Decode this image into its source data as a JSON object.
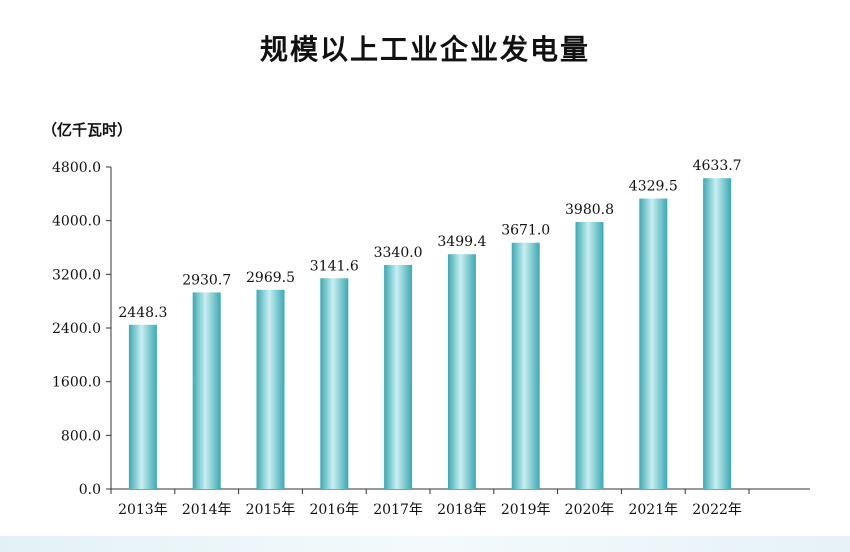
{
  "header": {
    "title": "规模以上工业企业发电量",
    "unit": "（亿千瓦时）"
  },
  "colors": {
    "bar_dark": "#3aa9b4",
    "bar_light": "#c9eef1",
    "axis": "#333333"
  },
  "chart_data": {
    "type": "bar",
    "title": "规模以上工业企业发电量",
    "ylabel": "（亿千瓦时）",
    "xlabel": "",
    "categories": [
      "2013年",
      "2014年",
      "2015年",
      "2016年",
      "2017年",
      "2018年",
      "2019年",
      "2020年",
      "2021年",
      "2022年"
    ],
    "values": [
      2448.3,
      2930.7,
      2969.5,
      3141.6,
      3340.0,
      3499.4,
      3671.0,
      3980.8,
      4329.5,
      4633.7
    ],
    "value_labels": [
      "2448.3",
      "2930.7",
      "2969.5",
      "3141.6",
      "3340.0",
      "3499.4",
      "3671.0",
      "3980.8",
      "4329.5",
      "4633.7"
    ],
    "ylim": [
      0,
      4800
    ],
    "yticks": [
      0,
      800,
      1600,
      2400,
      3200,
      4000,
      4800
    ],
    "ytick_labels": [
      "0.0",
      "800.0",
      "1600.0",
      "2400.0",
      "3200.0",
      "4000.0",
      "4800.0"
    ],
    "grid": false,
    "legend": "none"
  }
}
